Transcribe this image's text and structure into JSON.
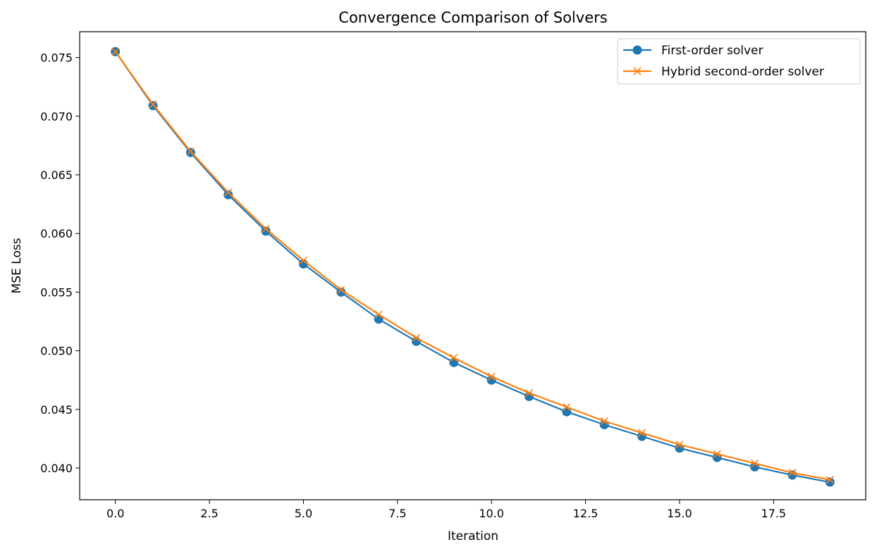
{
  "chart_data": {
    "type": "line",
    "title": "Convergence Comparison of Solvers",
    "xlabel": "Iteration",
    "ylabel": "MSE Loss",
    "xlim": [
      -0.95,
      19.95
    ],
    "ylim": [
      0.0373,
      0.0772
    ],
    "xticks": [
      0.0,
      2.5,
      5.0,
      7.5,
      10.0,
      12.5,
      15.0,
      17.5
    ],
    "xtick_labels": [
      "0.0",
      "2.5",
      "5.0",
      "7.5",
      "10.0",
      "12.5",
      "15.0",
      "17.5"
    ],
    "yticks": [
      0.04,
      0.045,
      0.05,
      0.055,
      0.06,
      0.065,
      0.07,
      0.075
    ],
    "ytick_labels": [
      "0.040",
      "0.045",
      "0.050",
      "0.055",
      "0.060",
      "0.065",
      "0.070",
      "0.075"
    ],
    "grid": false,
    "legend_position": "top-right",
    "x": [
      0,
      1,
      2,
      3,
      4,
      5,
      6,
      7,
      8,
      9,
      10,
      11,
      12,
      13,
      14,
      15,
      16,
      17,
      18,
      19
    ],
    "series": [
      {
        "name": "First-order solver",
        "color": "#1f77b4",
        "marker": "circle",
        "values": [
          0.0755,
          0.0709,
          0.0669,
          0.0633,
          0.0602,
          0.0574,
          0.055,
          0.0527,
          0.0508,
          0.049,
          0.0475,
          0.0461,
          0.0448,
          0.0437,
          0.0427,
          0.0417,
          0.0409,
          0.0401,
          0.0394,
          0.0388
        ]
      },
      {
        "name": "Hybrid second-order solver",
        "color": "#ff7f0e",
        "marker": "x",
        "values": [
          0.0755,
          0.071,
          0.067,
          0.0635,
          0.0604,
          0.0577,
          0.0552,
          0.0531,
          0.0511,
          0.0494,
          0.0478,
          0.0464,
          0.0452,
          0.044,
          0.043,
          0.042,
          0.0412,
          0.0404,
          0.0396,
          0.039
        ]
      }
    ]
  }
}
